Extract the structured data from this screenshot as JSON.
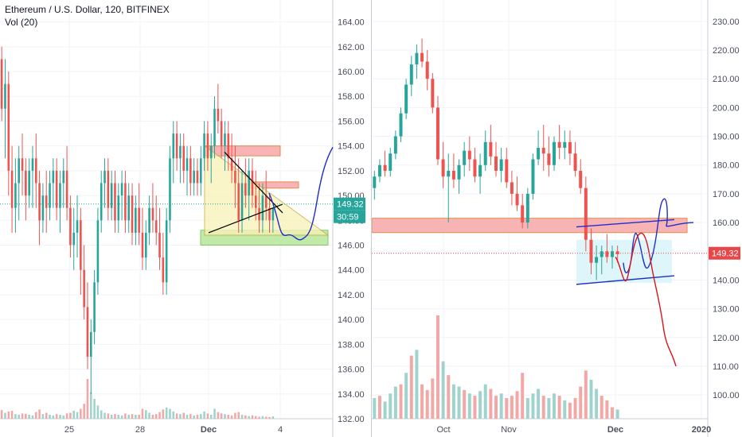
{
  "header": {
    "symbol_line": "Ethereum / U.S. Dollar, 120, BITFINEX",
    "indicator": "Vol (20)"
  },
  "colors": {
    "up": "#26a69a",
    "down": "#ef5350",
    "vol_up": "#9fd4cd",
    "vol_down": "#f4a8a6",
    "last_price_badge": "#e8474a",
    "countdown_badge": "#26a69a",
    "grid": "#f0f3fa",
    "axis_text": "#4a4f5c",
    "zone_red": "#f7a8a8",
    "zone_green": "#b7e79a",
    "wedge_yellow": "#f8f2b8",
    "hand_blue": "#1f2fc9",
    "hand_red": "#d9141b",
    "range_cyan": "#d6f4f8"
  },
  "chart_data": [
    {
      "type": "candlestick",
      "title": "Ethereum / U.S. Dollar, 120, BITFINEX",
      "interval": "120",
      "indicator": "Vol (20)",
      "x_ticks": [
        "25",
        "28",
        "Dec",
        "4"
      ],
      "y_ticks": [
        "132.00",
        "134.00",
        "136.00",
        "138.00",
        "140.00",
        "142.00",
        "144.00",
        "146.00",
        "148.00",
        "150.00",
        "152.00",
        "154.00",
        "156.00",
        "158.00",
        "160.00",
        "162.00",
        "164.00"
      ],
      "ylim": [
        132,
        165
      ],
      "last_price": "149.32",
      "countdown": "30:59",
      "grid": true,
      "bars": [
        [
          161,
          162,
          156,
          157
        ],
        [
          157,
          161,
          153,
          159
        ],
        [
          159,
          160,
          150,
          152
        ],
        [
          152,
          154,
          147,
          149
        ],
        [
          149,
          153,
          147,
          151
        ],
        [
          151,
          154,
          148,
          153
        ],
        [
          153,
          155,
          150,
          152
        ],
        [
          152,
          153,
          148,
          150
        ],
        [
          150,
          153,
          149,
          152
        ],
        [
          152,
          154,
          149,
          153
        ],
        [
          153,
          155,
          149,
          151
        ],
        [
          151,
          152,
          146,
          148
        ],
        [
          148,
          151,
          147,
          150
        ],
        [
          150,
          152,
          147,
          149
        ],
        [
          149,
          152,
          148,
          151
        ],
        [
          151,
          153,
          149,
          152
        ],
        [
          152,
          153,
          148,
          149
        ],
        [
          149,
          152,
          147,
          151
        ],
        [
          151,
          153,
          149,
          152
        ],
        [
          152,
          154,
          148,
          149
        ],
        [
          149,
          150,
          145,
          146
        ],
        [
          146,
          149,
          144,
          147
        ],
        [
          147,
          150,
          145,
          148
        ],
        [
          148,
          149,
          142,
          144
        ],
        [
          144,
          146,
          140,
          141
        ],
        [
          141,
          143,
          136,
          137
        ],
        [
          137,
          140,
          134,
          139
        ],
        [
          139,
          144,
          138,
          143
        ],
        [
          143,
          149,
          142,
          148
        ],
        [
          148,
          152,
          147,
          151
        ],
        [
          151,
          153,
          149,
          152
        ],
        [
          152,
          153,
          148,
          149
        ],
        [
          149,
          152,
          148,
          151
        ],
        [
          151,
          152,
          147,
          148
        ],
        [
          148,
          151,
          147,
          150
        ],
        [
          150,
          152,
          148,
          151
        ],
        [
          151,
          152,
          147,
          148
        ],
        [
          148,
          151,
          147,
          150
        ],
        [
          150,
          151,
          146,
          147
        ],
        [
          147,
          150,
          146,
          149
        ],
        [
          149,
          151,
          146,
          147
        ],
        [
          147,
          149,
          144,
          145
        ],
        [
          145,
          148,
          144,
          147
        ],
        [
          147,
          150,
          146,
          149
        ],
        [
          149,
          151,
          147,
          148
        ],
        [
          148,
          150,
          146,
          147
        ],
        [
          147,
          149,
          144,
          145
        ],
        [
          145,
          147,
          142,
          143
        ],
        [
          143,
          149,
          142,
          148
        ],
        [
          148,
          154,
          147,
          153
        ],
        [
          153,
          156,
          151,
          155
        ],
        [
          155,
          156,
          152,
          153
        ],
        [
          153,
          155,
          151,
          154
        ],
        [
          154,
          155,
          151,
          152
        ],
        [
          152,
          154,
          150,
          153
        ],
        [
          153,
          154,
          150,
          151
        ],
        [
          151,
          153,
          150,
          152
        ],
        [
          152,
          153,
          150,
          151
        ],
        [
          151,
          154,
          150,
          153
        ],
        [
          153,
          156,
          152,
          155
        ],
        [
          155,
          156,
          152,
          153
        ],
        [
          153,
          155,
          151,
          154
        ],
        [
          154,
          158,
          153,
          157
        ],
        [
          157,
          159,
          155,
          156
        ],
        [
          156,
          157,
          153,
          154
        ],
        [
          154,
          156,
          152,
          155
        ],
        [
          155,
          156,
          152,
          153
        ],
        [
          153,
          155,
          151,
          152
        ],
        [
          152,
          154,
          149,
          151
        ],
        [
          151,
          153,
          147,
          148
        ],
        [
          148,
          152,
          147,
          151
        ],
        [
          151,
          153,
          149,
          150
        ],
        [
          150,
          153,
          148,
          152
        ],
        [
          152,
          153,
          149,
          150
        ],
        [
          150,
          152,
          148,
          149
        ],
        [
          149,
          151,
          147,
          148
        ],
        [
          148,
          151,
          147,
          150
        ],
        [
          150,
          152,
          148,
          149
        ],
        [
          149,
          150,
          147,
          148
        ],
        [
          148,
          149,
          147,
          149
        ]
      ],
      "volume": [
        [
          26,
          0
        ],
        [
          18,
          1
        ],
        [
          22,
          0
        ],
        [
          24,
          0
        ],
        [
          14,
          1
        ],
        [
          12,
          1
        ],
        [
          16,
          0
        ],
        [
          15,
          0
        ],
        [
          12,
          1
        ],
        [
          10,
          1
        ],
        [
          20,
          0
        ],
        [
          28,
          0
        ],
        [
          14,
          1
        ],
        [
          18,
          0
        ],
        [
          12,
          1
        ],
        [
          10,
          1
        ],
        [
          14,
          0
        ],
        [
          12,
          1
        ],
        [
          10,
          1
        ],
        [
          16,
          0
        ],
        [
          18,
          0
        ],
        [
          24,
          1
        ],
        [
          20,
          1
        ],
        [
          30,
          0
        ],
        [
          45,
          0
        ],
        [
          120,
          0
        ],
        [
          80,
          1
        ],
        [
          60,
          1
        ],
        [
          40,
          1
        ],
        [
          25,
          1
        ],
        [
          18,
          1
        ],
        [
          16,
          0
        ],
        [
          12,
          1
        ],
        [
          14,
          0
        ],
        [
          12,
          1
        ],
        [
          10,
          1
        ],
        [
          16,
          0
        ],
        [
          12,
          1
        ],
        [
          14,
          0
        ],
        [
          12,
          1
        ],
        [
          12,
          0
        ],
        [
          30,
          0
        ],
        [
          26,
          1
        ],
        [
          18,
          1
        ],
        [
          12,
          0
        ],
        [
          14,
          0
        ],
        [
          20,
          0
        ],
        [
          28,
          0
        ],
        [
          34,
          1
        ],
        [
          30,
          1
        ],
        [
          22,
          1
        ],
        [
          16,
          0
        ],
        [
          14,
          1
        ],
        [
          18,
          0
        ],
        [
          12,
          1
        ],
        [
          14,
          0
        ],
        [
          10,
          1
        ],
        [
          12,
          0
        ],
        [
          14,
          1
        ],
        [
          22,
          1
        ],
        [
          16,
          0
        ],
        [
          12,
          1
        ],
        [
          30,
          1
        ],
        [
          20,
          0
        ],
        [
          16,
          0
        ],
        [
          14,
          1
        ],
        [
          12,
          0
        ],
        [
          10,
          0
        ],
        [
          18,
          0
        ],
        [
          20,
          0
        ],
        [
          12,
          1
        ],
        [
          10,
          0
        ],
        [
          8,
          1
        ],
        [
          10,
          0
        ],
        [
          8,
          0
        ],
        [
          6,
          0
        ],
        [
          8,
          1
        ],
        [
          6,
          0
        ],
        [
          5,
          0
        ],
        [
          7,
          1
        ]
      ],
      "annotations": [
        {
          "type": "rect",
          "fill": "zone_red",
          "price": [
            153.2,
            154.0
          ]
        },
        {
          "type": "rect",
          "fill": "zone_red",
          "price": [
            150.6,
            151.1
          ]
        },
        {
          "type": "rect",
          "fill": "zone_green",
          "price": [
            146.0,
            147.2
          ]
        },
        {
          "type": "triangle",
          "fill": "wedge_yellow",
          "prices": [
            154.0,
            146.8,
            146.8
          ]
        },
        {
          "type": "trendline",
          "color": "black",
          "from": 153.5,
          "to": 148.6
        },
        {
          "type": "trendline",
          "color": "black",
          "from": 147.0,
          "to": 149.3
        },
        {
          "type": "freehand",
          "color": "hand_blue"
        }
      ]
    },
    {
      "type": "candlestick",
      "x_ticks": [
        "Oct",
        "Nov",
        "Dec",
        "2020"
      ],
      "y_ticks": [
        "100.00",
        "110.00",
        "120.00",
        "130.00",
        "140.00",
        "150.00",
        "160.00",
        "170.00",
        "180.00",
        "190.00",
        "200.00",
        "210.00",
        "220.00",
        "230.00"
      ],
      "ylim": [
        97,
        233
      ],
      "last_price": "149.32",
      "grid": true,
      "bars": [
        [
          172,
          178,
          168,
          176
        ],
        [
          176,
          182,
          174,
          180
        ],
        [
          180,
          185,
          176,
          178
        ],
        [
          178,
          186,
          176,
          184
        ],
        [
          184,
          192,
          182,
          190
        ],
        [
          190,
          200,
          188,
          198
        ],
        [
          198,
          210,
          196,
          208
        ],
        [
          208,
          218,
          204,
          215
        ],
        [
          215,
          222,
          210,
          219
        ],
        [
          219,
          224,
          214,
          216
        ],
        [
          216,
          220,
          206,
          210
        ],
        [
          210,
          212,
          198,
          200
        ],
        [
          200,
          204,
          180,
          182
        ],
        [
          182,
          188,
          172,
          176
        ],
        [
          176,
          184,
          160,
          178
        ],
        [
          178,
          184,
          172,
          175
        ],
        [
          175,
          182,
          170,
          180
        ],
        [
          180,
          188,
          176,
          185
        ],
        [
          185,
          190,
          178,
          182
        ],
        [
          182,
          186,
          174,
          176
        ],
        [
          176,
          184,
          170,
          180
        ],
        [
          180,
          192,
          178,
          188
        ],
        [
          188,
          194,
          180,
          183
        ],
        [
          183,
          188,
          176,
          178
        ],
        [
          178,
          186,
          174,
          182
        ],
        [
          182,
          186,
          172,
          174
        ],
        [
          174,
          178,
          166,
          170
        ],
        [
          170,
          176,
          164,
          166
        ],
        [
          166,
          170,
          158,
          160
        ],
        [
          160,
          172,
          158,
          170
        ],
        [
          170,
          184,
          168,
          182
        ],
        [
          182,
          192,
          180,
          186
        ],
        [
          186,
          194,
          178,
          184
        ],
        [
          184,
          190,
          176,
          180
        ],
        [
          180,
          190,
          178,
          188
        ],
        [
          188,
          194,
          182,
          186
        ],
        [
          186,
          192,
          182,
          188
        ],
        [
          188,
          192,
          180,
          184
        ],
        [
          184,
          188,
          176,
          178
        ],
        [
          178,
          182,
          170,
          172
        ],
        [
          172,
          176,
          150,
          154
        ],
        [
          154,
          158,
          142,
          146
        ],
        [
          146,
          152,
          140,
          148
        ],
        [
          148,
          152,
          142,
          150
        ],
        [
          150,
          156,
          146,
          148
        ],
        [
          148,
          152,
          144,
          150
        ],
        [
          150,
          152,
          146,
          149
        ]
      ],
      "volume": [
        [
          18,
          1
        ],
        [
          20,
          0
        ],
        [
          15,
          1
        ],
        [
          22,
          1
        ],
        [
          28,
          1
        ],
        [
          30,
          0
        ],
        [
          40,
          1
        ],
        [
          55,
          0
        ],
        [
          60,
          1
        ],
        [
          30,
          0
        ],
        [
          25,
          0
        ],
        [
          35,
          0
        ],
        [
          90,
          0
        ],
        [
          50,
          1
        ],
        [
          38,
          0
        ],
        [
          30,
          1
        ],
        [
          28,
          1
        ],
        [
          25,
          0
        ],
        [
          22,
          1
        ],
        [
          20,
          0
        ],
        [
          24,
          1
        ],
        [
          30,
          1
        ],
        [
          26,
          0
        ],
        [
          20,
          0
        ],
        [
          22,
          1
        ],
        [
          18,
          0
        ],
        [
          20,
          0
        ],
        [
          24,
          0
        ],
        [
          40,
          0
        ],
        [
          18,
          1
        ],
        [
          22,
          1
        ],
        [
          26,
          1
        ],
        [
          20,
          0
        ],
        [
          18,
          1
        ],
        [
          22,
          1
        ],
        [
          20,
          0
        ],
        [
          16,
          1
        ],
        [
          14,
          0
        ],
        [
          18,
          0
        ],
        [
          28,
          0
        ],
        [
          42,
          0
        ],
        [
          34,
          1
        ],
        [
          26,
          1
        ],
        [
          20,
          0
        ],
        [
          16,
          0
        ],
        [
          10,
          0
        ],
        [
          8,
          1
        ]
      ],
      "annotations": [
        {
          "type": "rect",
          "fill": "zone_red",
          "price": [
            156.5,
            161.5
          ]
        },
        {
          "type": "rect",
          "fill": "range_cyan",
          "price": [
            139,
            154
          ]
        },
        {
          "type": "trendline",
          "color": "hand_blue",
          "from": 158.5,
          "to": 161.0
        },
        {
          "type": "trendline",
          "color": "hand_blue",
          "from": 138.5,
          "to": 141.5
        },
        {
          "type": "freehand",
          "color": "hand_blue"
        },
        {
          "type": "freehand",
          "color": "hand_red"
        }
      ]
    }
  ]
}
